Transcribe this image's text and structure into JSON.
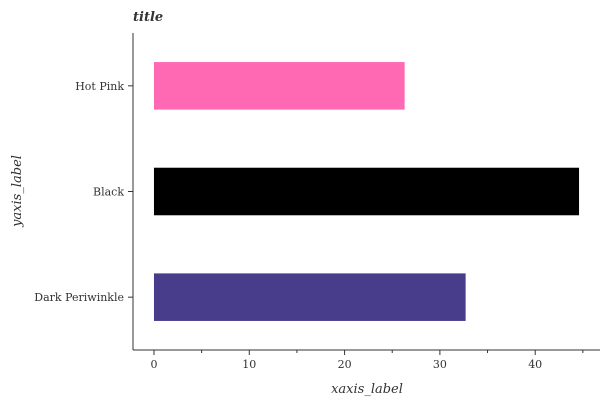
{
  "chart_data": {
    "type": "bar",
    "orientation": "horizontal",
    "title": "title",
    "xlabel": "xaxis_label",
    "ylabel": "yaxis_label",
    "categories": [
      "Dark Periwinkle",
      "Black",
      "Hot Pink"
    ],
    "values": [
      32.7,
      44.6,
      26.3
    ],
    "colors": [
      "#483d8b",
      "#000000",
      "#ff69b4"
    ],
    "xlim": [
      -2.2,
      46.8
    ],
    "xticks": [
      0,
      10,
      20,
      30,
      40
    ],
    "xtick_labels": [
      "0",
      "10",
      "20",
      "30",
      "40"
    ],
    "grid": false
  }
}
